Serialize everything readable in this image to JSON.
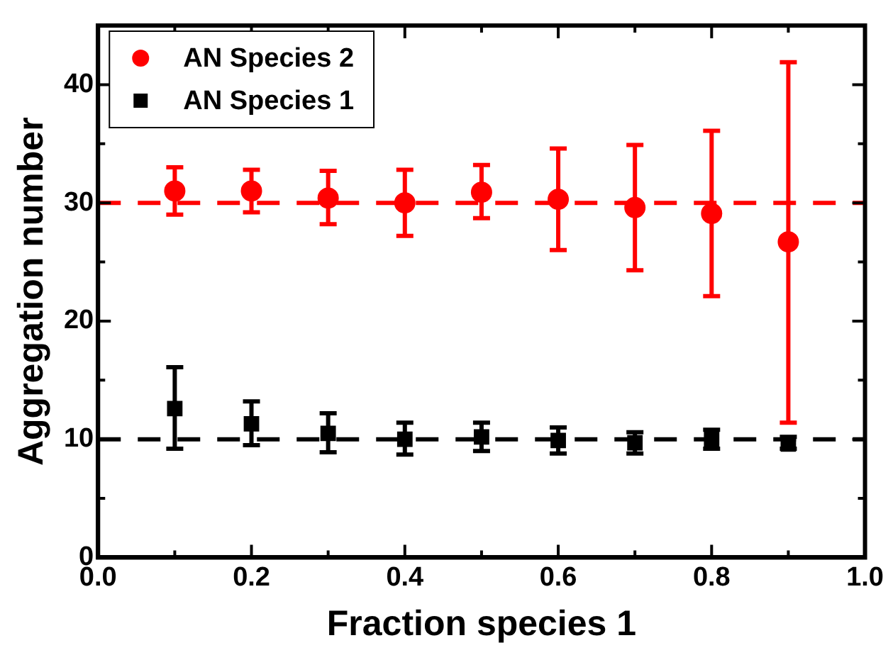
{
  "chart_data": {
    "type": "scatter",
    "xlabel": "Fraction species 1",
    "ylabel": "Aggregation number",
    "xlim": [
      0,
      1
    ],
    "ylim": [
      0,
      45
    ],
    "xticks": [
      {
        "value": 0,
        "label": "0.0"
      },
      {
        "value": 0.1,
        "label": null
      },
      0.2,
      {
        "value": 0.3,
        "label": null
      },
      0.4,
      {
        "value": 0.5,
        "label": null
      },
      0.6,
      {
        "value": 0.7,
        "label": null
      },
      0.8,
      {
        "value": 0.9,
        "label": null
      },
      {
        "value": 1,
        "label": "1.0"
      }
    ],
    "yticks": [
      0,
      {
        "value": 5,
        "label": null
      },
      10,
      {
        "value": 15,
        "label": null
      },
      20,
      {
        "value": 25,
        "label": null
      },
      30,
      {
        "value": 35,
        "label": null
      },
      40,
      {
        "value": 45,
        "label": null
      }
    ],
    "x": [
      0.1,
      0.2,
      0.3,
      0.4,
      0.5,
      0.6,
      0.7,
      0.8,
      0.9
    ],
    "series": [
      {
        "name": "AN Species 2",
        "color": "#ff0000",
        "marker": "circle",
        "values": [
          31,
          31,
          30.4,
          30,
          30.9,
          30.3,
          29.6,
          29.1,
          26.7
        ],
        "errors": [
          [
            29,
            33
          ],
          [
            29.2,
            32.8
          ],
          [
            28.2,
            32.7
          ],
          [
            27.2,
            32.8
          ],
          [
            28.7,
            33.2
          ],
          [
            26,
            34.6
          ],
          [
            24.3,
            34.9
          ],
          [
            22.1,
            36.1
          ],
          [
            11.4,
            41.9
          ]
        ]
      },
      {
        "name": "AN Species 1",
        "color": "#000000",
        "marker": "square",
        "values": [
          12.6,
          11.3,
          10.5,
          10,
          10.2,
          9.9,
          9.7,
          10,
          9.6
        ],
        "errors": [
          [
            9.2,
            16.1
          ],
          [
            9.5,
            13.2
          ],
          [
            8.9,
            12.2
          ],
          [
            8.7,
            11.4
          ],
          [
            9,
            11.4
          ],
          [
            8.8,
            11
          ],
          [
            8.8,
            10.6
          ],
          [
            9.2,
            10.8
          ],
          [
            9.2,
            10.2
          ]
        ]
      }
    ],
    "ref_lines": [
      {
        "axis": "y",
        "value": 30,
        "color": "#ff0000",
        "line_style": "dashed"
      },
      {
        "axis": "y",
        "value": 10,
        "color": "#000000",
        "line_style": "dashed"
      }
    ],
    "legend": "top left",
    "grid": false
  }
}
